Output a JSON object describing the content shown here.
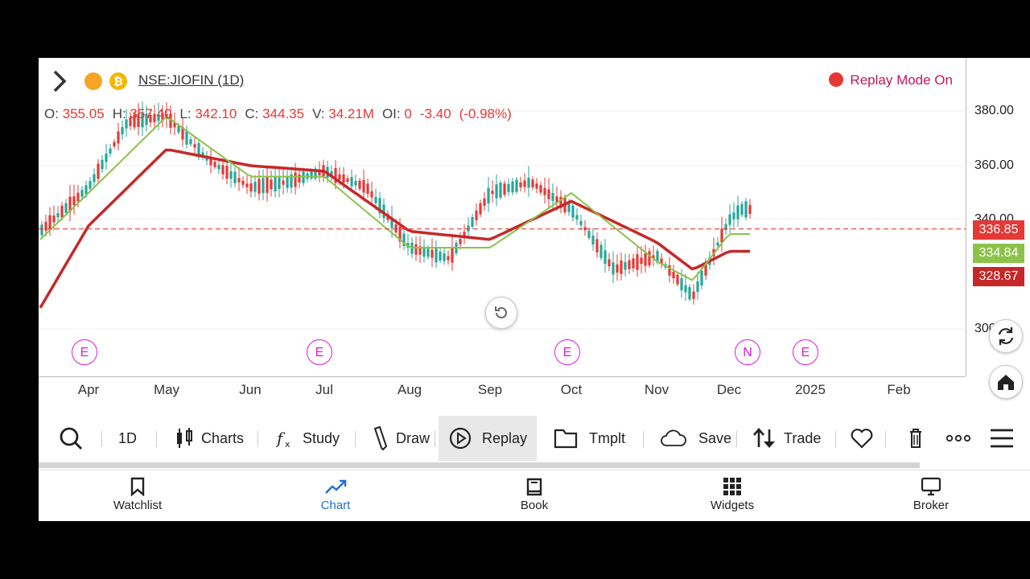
{
  "header": {
    "symbol": "NSE:JIOFIN (1D)",
    "coin_glyph": "₿",
    "replay_mode": "Replay Mode On"
  },
  "ohlc": {
    "o_label": "O:",
    "o": "355.05",
    "h_label": "H:",
    "h": "357.40",
    "l_label": "L:",
    "l": "342.10",
    "c_label": "C:",
    "c": "344.35",
    "v_label": "V:",
    "v": "34.21M",
    "oi_label": "OI:",
    "oi": "0",
    "change": "-3.40",
    "change_pct": "(-0.98%)"
  },
  "price_axis": {
    "ticks": [
      "380.00",
      "360.00",
      "340.00",
      "300"
    ],
    "tags": [
      {
        "value": "336.85",
        "color": "#e53935"
      },
      {
        "value": "334.84",
        "color": "#8bc34a"
      },
      {
        "value": "328.67",
        "color": "#c62828"
      }
    ]
  },
  "time_axis": {
    "months": [
      "Apr",
      "May",
      "Jun",
      "Jul",
      "Aug",
      "Sep",
      "Oct",
      "Nov",
      "Dec",
      "2025",
      "Feb"
    ]
  },
  "events": [
    "E",
    "E",
    "E",
    "N",
    "E"
  ],
  "toolbar": {
    "interval": "1D",
    "charts": "Charts",
    "study": "Study",
    "draw": "Draw",
    "replay": "Replay",
    "template": "Tmplt",
    "save": "Save",
    "trade": "Trade"
  },
  "bottom_nav": [
    {
      "label": "Watchlist",
      "icon": "bookmark-icon"
    },
    {
      "label": "Chart",
      "icon": "chart-line-icon"
    },
    {
      "label": "Book",
      "icon": "book-icon"
    },
    {
      "label": "Widgets",
      "icon": "grid-icon"
    },
    {
      "label": "Broker",
      "icon": "monitor-icon"
    }
  ],
  "colors": {
    "up": "#26a69a",
    "down": "#e53935",
    "ma_fast": "#8bc34a",
    "ma_slow": "#c62828",
    "active": "#1e6fd9",
    "replay": "#c2185b"
  },
  "chart_data": {
    "type": "candlestick",
    "price_lines": [
      336.85,
      334.84,
      328.67
    ],
    "series": [
      {
        "name": "Price",
        "type": "candlestick",
        "approx_close_path": [
          [
            "Mar",
            336
          ],
          [
            "Apr",
            352
          ],
          [
            "Apr",
            376
          ],
          [
            "May",
            378
          ],
          [
            "May",
            362
          ],
          [
            "Jun",
            352
          ],
          [
            "Jun",
            354
          ],
          [
            "Jul",
            358
          ],
          [
            "Jul",
            352
          ],
          [
            "Aug",
            330
          ],
          [
            "Aug",
            326
          ],
          [
            "Sep",
            350
          ],
          [
            "Sep",
            354
          ],
          [
            "Oct",
            344
          ],
          [
            "Oct",
            322
          ],
          [
            "Nov",
            327
          ],
          [
            "Nov",
            312
          ],
          [
            "Dec",
            340
          ],
          [
            "Dec",
            344
          ]
        ]
      },
      {
        "type": "line",
        "approx_values": [
          [
            "Mar",
            333
          ],
          [
            "Apr",
            350
          ],
          [
            "May",
            378
          ],
          [
            "Jun",
            356
          ],
          [
            "Jul",
            356
          ],
          [
            "Aug",
            330
          ],
          [
            "Sep",
            330
          ],
          [
            "Oct",
            350
          ],
          [
            "Nov",
            325
          ],
          [
            "Nov",
            318
          ],
          [
            "Dec",
            335
          ]
        ]
      },
      {
        "type": "line",
        "approx_values": [
          [
            "Mar",
            308
          ],
          [
            "Apr",
            338
          ],
          [
            "May",
            366
          ],
          [
            "Jun",
            360
          ],
          [
            "Jul",
            358
          ],
          [
            "Aug",
            336
          ],
          [
            "Sep",
            333
          ],
          [
            "Oct",
            347
          ],
          [
            "Nov",
            332
          ],
          [
            "Nov",
            322
          ],
          [
            "Dec",
            328.67
          ]
        ]
      }
    ]
  }
}
